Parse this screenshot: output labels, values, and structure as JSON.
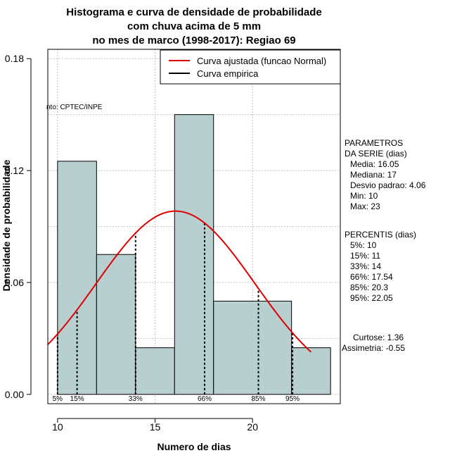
{
  "chart_data": {
    "type": "bar",
    "title_lines": [
      "Histograma e curva de densidade de probabilidade",
      "com chuva acima de 5 mm",
      "no mes de marco (1998-2017): Regiao 69"
    ],
    "xlabel": "Numero de dias",
    "ylabel": "Densidade de probabilidade",
    "xlim": [
      9.5,
      24.5
    ],
    "ylim": [
      -0.005,
      0.185
    ],
    "x_ticks": [
      10,
      15,
      20
    ],
    "y_ticks": [
      0.0,
      0.06,
      0.12,
      0.18
    ],
    "y_tick_labels": [
      "0.00",
      "0.06",
      "0.12",
      "0.18"
    ],
    "grid": true,
    "bins": [
      {
        "start": 10,
        "end": 12,
        "density": 0.125
      },
      {
        "start": 12,
        "end": 14,
        "density": 0.075
      },
      {
        "start": 14,
        "end": 16,
        "density": 0.025
      },
      {
        "start": 16,
        "end": 18,
        "density": 0.15
      },
      {
        "start": 18,
        "end": 22,
        "density": 0.05
      },
      {
        "start": 22,
        "end": 24,
        "density": 0.025
      }
    ],
    "normal_fit": {
      "mean": 16.05,
      "sd": 4.06,
      "x_from": 9.5,
      "x_to": 23
    },
    "percentile_markers": [
      {
        "label": "5%",
        "x": 10
      },
      {
        "label": "15%",
        "x": 11
      },
      {
        "label": "33%",
        "x": 14
      },
      {
        "label": "66%",
        "x": 17.54
      },
      {
        "label": "85%",
        "x": 20.3
      },
      {
        "label": "95%",
        "x": 22.05
      }
    ],
    "legend": {
      "position": "top-right",
      "entries": [
        {
          "label": "Curva ajustada (funcao Normal)",
          "color": "#e00000"
        },
        {
          "label": "Curva empirica",
          "color": "#000000"
        }
      ]
    },
    "source_note": "nto: CPTEC/INPE",
    "colors": {
      "bar_fill": "#b7cfcf",
      "curve": "#e00000",
      "grid": "#c0c0c0"
    }
  },
  "side_panel": {
    "parametros": [
      "PARAMETROS",
      "DA SERIE (dias)",
      "Media: 16.05",
      "Mediana: 17",
      "Desvio padrao: 4.06",
      "Min: 10",
      "Max: 23"
    ],
    "percentis": [
      "PERCENTIS (dias)",
      "5%: 10",
      "15%: 11",
      "33%: 14",
      "66%: 17.54",
      "85%: 20.3",
      "95%: 22.05"
    ],
    "curtose": "Curtose: 1.36",
    "assimetria": "Assimetria: -0.55"
  }
}
